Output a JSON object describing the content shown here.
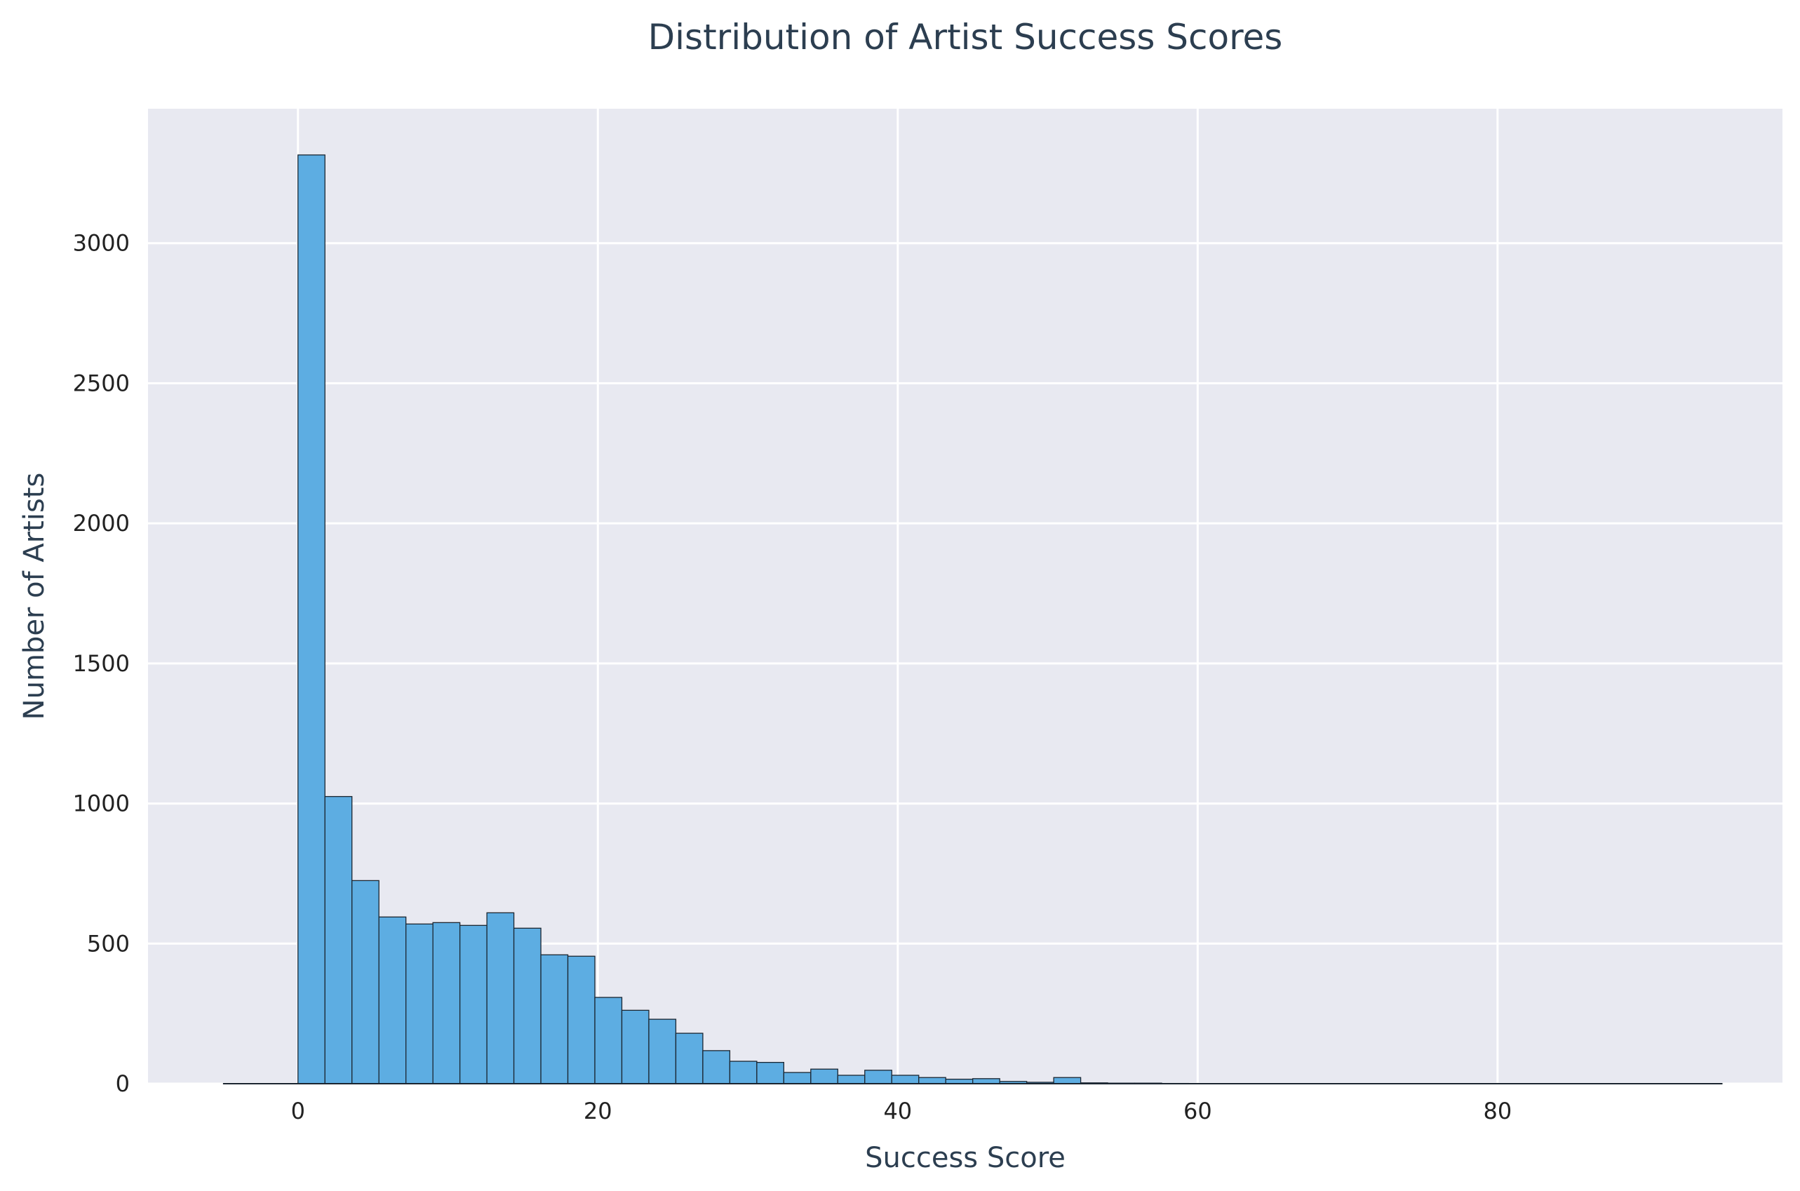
{
  "chart_data": {
    "type": "bar",
    "title": "Distribution of Artist Success Scores",
    "xlabel": "Success Score",
    "ylabel": "Number of Artists",
    "xlim": [
      -10,
      99
    ],
    "ylim": [
      0,
      3480
    ],
    "xticks": [
      0,
      20,
      40,
      60,
      80
    ],
    "yticks": [
      0,
      500,
      1000,
      1500,
      2000,
      2500,
      3000
    ],
    "grid": true,
    "bin_width": 1.8,
    "bins": [
      {
        "x0": -5.0,
        "x1": 0.0,
        "count": 0
      },
      {
        "x0": 0.0,
        "x1": 1.8,
        "count": 3315
      },
      {
        "x0": 1.8,
        "x1": 3.6,
        "count": 1025
      },
      {
        "x0": 3.6,
        "x1": 5.4,
        "count": 725
      },
      {
        "x0": 5.4,
        "x1": 7.2,
        "count": 595
      },
      {
        "x0": 7.2,
        "x1": 9.0,
        "count": 570
      },
      {
        "x0": 9.0,
        "x1": 10.8,
        "count": 575
      },
      {
        "x0": 10.8,
        "x1": 12.6,
        "count": 565
      },
      {
        "x0": 12.6,
        "x1": 14.4,
        "count": 610
      },
      {
        "x0": 14.4,
        "x1": 16.2,
        "count": 555
      },
      {
        "x0": 16.2,
        "x1": 18.0,
        "count": 460
      },
      {
        "x0": 18.0,
        "x1": 19.8,
        "count": 455
      },
      {
        "x0": 19.8,
        "x1": 21.6,
        "count": 308
      },
      {
        "x0": 21.6,
        "x1": 23.4,
        "count": 262
      },
      {
        "x0": 23.4,
        "x1": 25.2,
        "count": 230
      },
      {
        "x0": 25.2,
        "x1": 27.0,
        "count": 180
      },
      {
        "x0": 27.0,
        "x1": 28.8,
        "count": 118
      },
      {
        "x0": 28.8,
        "x1": 30.6,
        "count": 80
      },
      {
        "x0": 30.6,
        "x1": 32.4,
        "count": 76
      },
      {
        "x0": 32.4,
        "x1": 34.2,
        "count": 40
      },
      {
        "x0": 34.2,
        "x1": 36.0,
        "count": 52
      },
      {
        "x0": 36.0,
        "x1": 37.8,
        "count": 30
      },
      {
        "x0": 37.8,
        "x1": 39.6,
        "count": 48
      },
      {
        "x0": 39.6,
        "x1": 41.4,
        "count": 30
      },
      {
        "x0": 41.4,
        "x1": 43.2,
        "count": 22
      },
      {
        "x0": 43.2,
        "x1": 45.0,
        "count": 16
      },
      {
        "x0": 45.0,
        "x1": 46.8,
        "count": 18
      },
      {
        "x0": 46.8,
        "x1": 48.6,
        "count": 8
      },
      {
        "x0": 48.6,
        "x1": 50.4,
        "count": 5
      },
      {
        "x0": 50.4,
        "x1": 52.2,
        "count": 22
      },
      {
        "x0": 52.2,
        "x1": 54.0,
        "count": 3
      },
      {
        "x0": 54.0,
        "x1": 55.8,
        "count": 2
      },
      {
        "x0": 55.8,
        "x1": 57.6,
        "count": 2
      },
      {
        "x0": 57.6,
        "x1": 59.4,
        "count": 1
      },
      {
        "x0": 59.4,
        "x1": 95.0,
        "count": 0
      }
    ],
    "colors": {
      "bar_fill": "#5dade2",
      "bar_edge": "#1b2631",
      "plot_background": "#e8e9f1",
      "grid": "#ffffff",
      "title": "#2c3e50"
    }
  }
}
